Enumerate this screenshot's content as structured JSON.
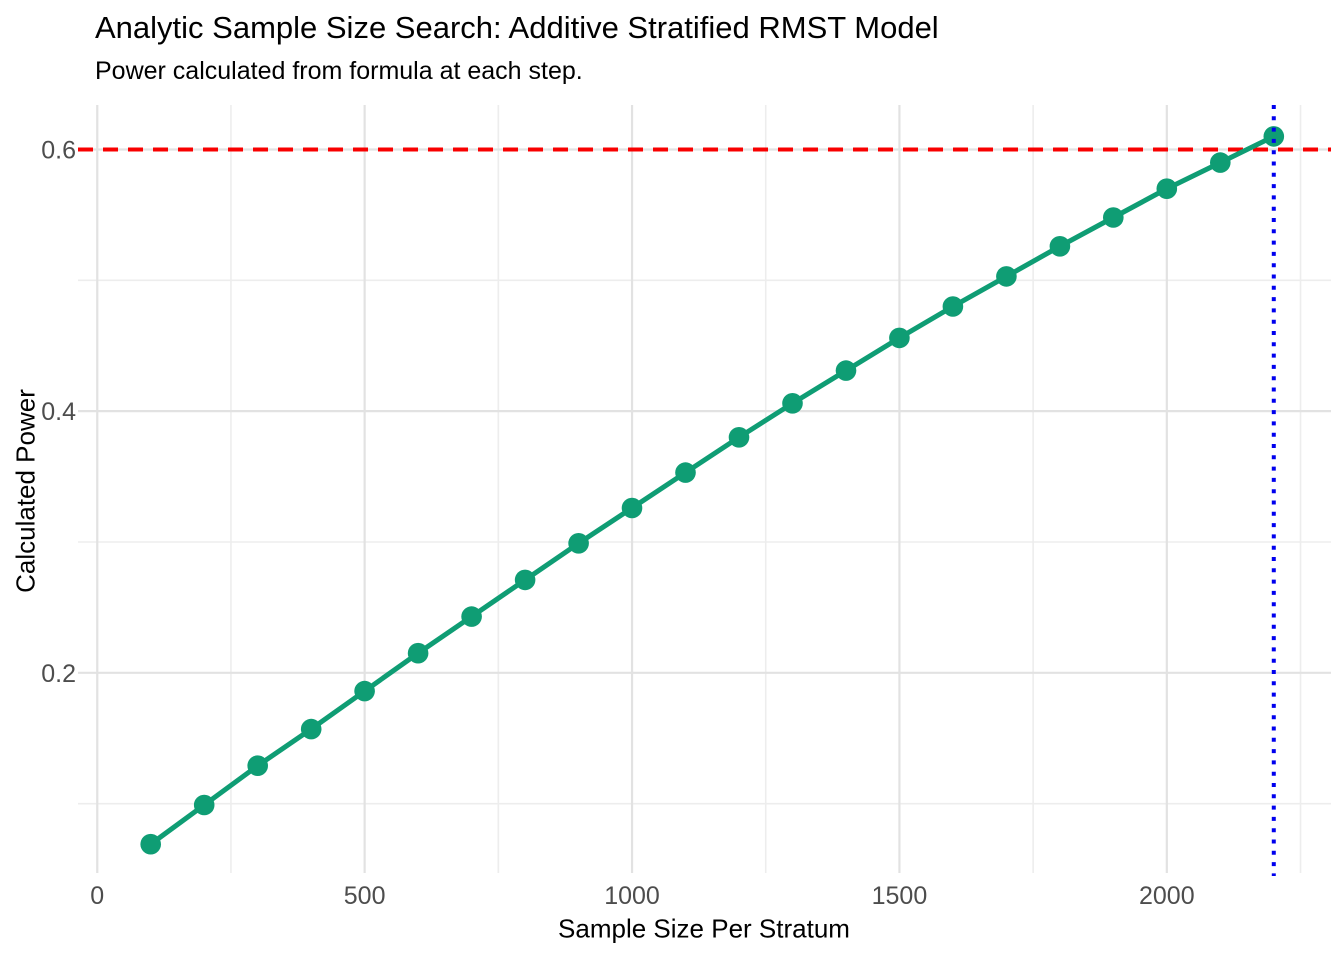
{
  "chart_data": {
    "type": "line",
    "title": "Analytic Sample Size Search: Additive Stratified RMST Model",
    "subtitle": "Power calculated from formula at each step.",
    "xlabel": "Sample Size Per Stratum",
    "ylabel": "Calculated Power",
    "x": [
      100,
      200,
      300,
      400,
      500,
      600,
      700,
      800,
      900,
      1000,
      1100,
      1200,
      1300,
      1400,
      1500,
      1600,
      1700,
      1800,
      1900,
      2000,
      2100,
      2200
    ],
    "series": [
      {
        "name": "calculated-power",
        "values": [
          0.069,
          0.099,
          0.129,
          0.157,
          0.186,
          0.215,
          0.243,
          0.271,
          0.299,
          0.326,
          0.353,
          0.38,
          0.406,
          0.431,
          0.456,
          0.48,
          0.503,
          0.526,
          0.548,
          0.57,
          0.59,
          0.61
        ],
        "color": "#0F9D74",
        "marker": "circle",
        "marker_radius": 10.3,
        "line_width": 5
      }
    ],
    "x_ticks": [
      0,
      500,
      1000,
      1500,
      2000
    ],
    "x_tick_labels": [
      "0",
      "500",
      "1000",
      "1500",
      "2000"
    ],
    "x_minor_gridlines": [
      250,
      750,
      1250,
      1750,
      2250
    ],
    "y_ticks": [
      0.2,
      0.4,
      0.6
    ],
    "y_tick_labels": [
      "0.2",
      "0.4",
      "0.6"
    ],
    "y_minor_gridlines": [
      0.1,
      0.3,
      0.5
    ],
    "xlim": [
      -36,
      2307
    ],
    "ylim": [
      0.047,
      0.634
    ],
    "grid": "major and minor, light gray, no axis lines (minimal theme)",
    "legend_position": "none",
    "reference_lines": [
      {
        "name": "target-power-line",
        "axis": "y",
        "value": 0.6,
        "color": "#F80000",
        "linetype": "dashed"
      },
      {
        "name": "required-sample-size-line",
        "axis": "x",
        "value": 2200,
        "color": "#0000EE",
        "linetype": "dotted"
      }
    ]
  },
  "style": {
    "background": "#FFFFFF",
    "grid_major_color": "#E2E2E2",
    "grid_minor_color": "#EDEDED",
    "tick_label_color": "#4D4D4D",
    "text_color": "#000000",
    "series_color": "#0F9D74",
    "target_line_color": "#F80000",
    "search_result_line_color": "#0000EE"
  }
}
